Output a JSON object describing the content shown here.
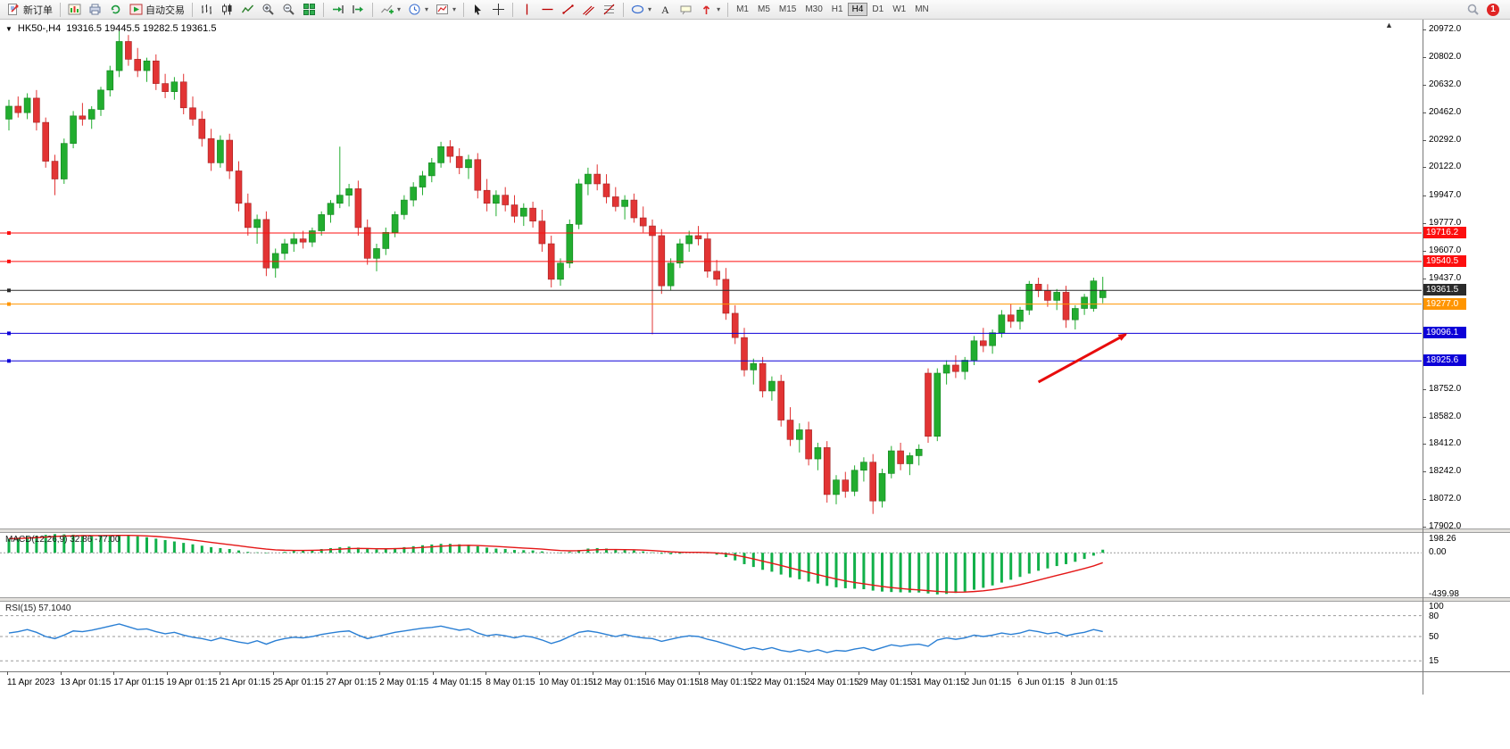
{
  "toolbar": {
    "new_order_label": "新订单",
    "autotrading_label": "自动交易",
    "timeframes": [
      "M1",
      "M5",
      "M15",
      "M30",
      "H1",
      "H4",
      "D1",
      "W1",
      "MN"
    ],
    "active_timeframe": "H4",
    "notification_count": "1"
  },
  "chart": {
    "header": {
      "symbol_period": "HK50-,H4",
      "ohlc": "19316.5 19445.5 19282.5 19361.5"
    }
  },
  "chart_data": {
    "type": "candlestick",
    "symbol": "HK50-",
    "period": "H4",
    "open": 19316.5,
    "high": 19445.5,
    "low": 19282.5,
    "close": 19361.5,
    "up_color": "#22ad2f",
    "down_color": "#e23434",
    "price_axis": {
      "view_max": 21035,
      "view_min": 17890,
      "ticks": [
        20972,
        20802,
        20632,
        20462,
        20292,
        20122,
        19947,
        19777,
        19607,
        19437,
        18752,
        18582,
        18412,
        18242,
        18072,
        17902
      ]
    },
    "hlines": [
      {
        "price": 19716.2,
        "label": "19716.2",
        "color": "#fd0f0f"
      },
      {
        "price": 19540.5,
        "label": "19540.5",
        "color": "#fd0f0f"
      },
      {
        "price": 19361.5,
        "label": "19361.5",
        "color": "#2b2b2b",
        "current": true
      },
      {
        "price": 19277.0,
        "label": "19277.0",
        "color": "#ff9500"
      },
      {
        "price": 19096.1,
        "label": "19096.1",
        "color": "#0d00d8"
      },
      {
        "price": 18925.6,
        "label": "18925.6",
        "color": "#0d00d8"
      }
    ],
    "candles": [
      [
        20420,
        20540,
        20350,
        20500
      ],
      [
        20500,
        20560,
        20430,
        20460
      ],
      [
        20460,
        20580,
        20420,
        20550
      ],
      [
        20550,
        20600,
        20350,
        20400
      ],
      [
        20400,
        20430,
        20120,
        20160
      ],
      [
        20160,
        20200,
        19950,
        20050
      ],
      [
        20050,
        20300,
        20020,
        20270
      ],
      [
        20270,
        20470,
        20240,
        20440
      ],
      [
        20440,
        20520,
        20380,
        20420
      ],
      [
        20420,
        20500,
        20360,
        20480
      ],
      [
        20480,
        20620,
        20440,
        20600
      ],
      [
        20600,
        20750,
        20560,
        20720
      ],
      [
        20720,
        20970,
        20680,
        20900
      ],
      [
        20900,
        20940,
        20750,
        20790
      ],
      [
        20790,
        20860,
        20680,
        20720
      ],
      [
        20720,
        20800,
        20650,
        20780
      ],
      [
        20780,
        20820,
        20600,
        20640
      ],
      [
        20640,
        20700,
        20550,
        20590
      ],
      [
        20590,
        20680,
        20540,
        20650
      ],
      [
        20650,
        20700,
        20450,
        20490
      ],
      [
        20490,
        20560,
        20380,
        20420
      ],
      [
        20420,
        20470,
        20250,
        20300
      ],
      [
        20300,
        20360,
        20100,
        20150
      ],
      [
        20150,
        20320,
        20120,
        20290
      ],
      [
        20290,
        20330,
        20050,
        20100
      ],
      [
        20100,
        20160,
        19850,
        19900
      ],
      [
        19900,
        19960,
        19700,
        19750
      ],
      [
        19750,
        19830,
        19650,
        19800
      ],
      [
        19800,
        19850,
        19450,
        19500
      ],
      [
        19500,
        19620,
        19440,
        19590
      ],
      [
        19590,
        19680,
        19550,
        19650
      ],
      [
        19650,
        19720,
        19600,
        19680
      ],
      [
        19680,
        19730,
        19620,
        19660
      ],
      [
        19660,
        19750,
        19630,
        19730
      ],
      [
        19730,
        19850,
        19700,
        19830
      ],
      [
        19830,
        19920,
        19780,
        19900
      ],
      [
        19900,
        20250,
        19870,
        19950
      ],
      [
        19950,
        20020,
        19880,
        19990
      ],
      [
        19990,
        20040,
        19700,
        19750
      ],
      [
        19750,
        19800,
        19520,
        19560
      ],
      [
        19560,
        19650,
        19480,
        19620
      ],
      [
        19620,
        19750,
        19580,
        19720
      ],
      [
        19720,
        19850,
        19690,
        19830
      ],
      [
        19830,
        19950,
        19800,
        19920
      ],
      [
        19920,
        20030,
        19880,
        20000
      ],
      [
        20000,
        20100,
        19950,
        20070
      ],
      [
        20070,
        20180,
        20030,
        20150
      ],
      [
        20150,
        20280,
        20120,
        20250
      ],
      [
        20250,
        20290,
        20150,
        20190
      ],
      [
        20190,
        20240,
        20080,
        20120
      ],
      [
        20120,
        20200,
        20050,
        20170
      ],
      [
        20170,
        20210,
        19930,
        19980
      ],
      [
        19980,
        20050,
        19850,
        19900
      ],
      [
        19900,
        19980,
        19820,
        19950
      ],
      [
        19950,
        20000,
        19850,
        19890
      ],
      [
        19890,
        19950,
        19780,
        19820
      ],
      [
        19820,
        19900,
        19760,
        19870
      ],
      [
        19870,
        19910,
        19750,
        19790
      ],
      [
        19790,
        19860,
        19600,
        19650
      ],
      [
        19650,
        19700,
        19380,
        19430
      ],
      [
        19430,
        19560,
        19390,
        19530
      ],
      [
        19530,
        19800,
        19500,
        19770
      ],
      [
        19770,
        20050,
        19740,
        20020
      ],
      [
        20020,
        20120,
        19950,
        20080
      ],
      [
        20080,
        20140,
        19980,
        20020
      ],
      [
        20020,
        20080,
        19900,
        19940
      ],
      [
        19940,
        20000,
        19850,
        19880
      ],
      [
        19880,
        19950,
        19800,
        19920
      ],
      [
        19920,
        19960,
        19780,
        19810
      ],
      [
        19810,
        19880,
        19720,
        19760
      ],
      [
        19760,
        19800,
        19090,
        19700
      ],
      [
        19700,
        19740,
        19340,
        19390
      ],
      [
        19390,
        19560,
        19360,
        19530
      ],
      [
        19530,
        19680,
        19500,
        19650
      ],
      [
        19650,
        19730,
        19600,
        19700
      ],
      [
        19700,
        19760,
        19640,
        19680
      ],
      [
        19680,
        19720,
        19440,
        19480
      ],
      [
        19480,
        19550,
        19390,
        19430
      ],
      [
        19430,
        19500,
        19180,
        19220
      ],
      [
        19220,
        19270,
        19030,
        19070
      ],
      [
        19070,
        19130,
        18830,
        18870
      ],
      [
        18870,
        18940,
        18780,
        18910
      ],
      [
        18910,
        18950,
        18700,
        18740
      ],
      [
        18740,
        18830,
        18680,
        18800
      ],
      [
        18800,
        18840,
        18520,
        18560
      ],
      [
        18560,
        18640,
        18400,
        18440
      ],
      [
        18440,
        18540,
        18360,
        18500
      ],
      [
        18500,
        18550,
        18280,
        18320
      ],
      [
        18320,
        18420,
        18250,
        18390
      ],
      [
        18390,
        18430,
        18050,
        18100
      ],
      [
        18100,
        18220,
        18040,
        18190
      ],
      [
        18190,
        18240,
        18080,
        18120
      ],
      [
        18120,
        18280,
        18090,
        18250
      ],
      [
        18250,
        18330,
        18180,
        18300
      ],
      [
        18300,
        18350,
        17980,
        18060
      ],
      [
        18060,
        18260,
        18020,
        18230
      ],
      [
        18230,
        18400,
        18200,
        18370
      ],
      [
        18370,
        18420,
        18250,
        18290
      ],
      [
        18290,
        18360,
        18220,
        18340
      ],
      [
        18340,
        18410,
        18280,
        18380
      ],
      [
        18850,
        18880,
        18420,
        18460
      ],
      [
        18460,
        18880,
        18430,
        18850
      ],
      [
        18850,
        18930,
        18780,
        18900
      ],
      [
        18900,
        18960,
        18820,
        18860
      ],
      [
        18860,
        18950,
        18810,
        18930
      ],
      [
        18930,
        19080,
        18900,
        19050
      ],
      [
        19050,
        19130,
        18980,
        19020
      ],
      [
        19020,
        19120,
        18970,
        19100
      ],
      [
        19100,
        19240,
        19070,
        19210
      ],
      [
        19210,
        19280,
        19130,
        19170
      ],
      [
        19170,
        19260,
        19120,
        19240
      ],
      [
        19240,
        19420,
        19210,
        19400
      ],
      [
        19400,
        19440,
        19320,
        19360
      ],
      [
        19360,
        19400,
        19260,
        19300
      ],
      [
        19300,
        19370,
        19240,
        19350
      ],
      [
        19350,
        19390,
        19130,
        19180
      ],
      [
        19180,
        19270,
        19120,
        19250
      ],
      [
        19250,
        19340,
        19210,
        19320
      ],
      [
        19250,
        19440,
        19230,
        19420
      ],
      [
        19316.5,
        19445.5,
        19282.5,
        19361.5
      ]
    ],
    "x_axis_labels": [
      "11 Apr 2023",
      "13 Apr 01:15",
      "17 Apr 01:15",
      "19 Apr 01:15",
      "21 Apr 01:15",
      "25 Apr 01:15",
      "27 Apr 01:15",
      "2 May 01:15",
      "4 May 01:15",
      "8 May 01:15",
      "10 May 01:15",
      "12 May 01:15",
      "16 May 01:15",
      "18 May 01:15",
      "22 May 01:15",
      "24 May 01:15",
      "29 May 01:15",
      "31 May 01:15",
      "2 Jun 01:15",
      "6 Jun 01:15",
      "8 Jun 01:15"
    ],
    "indicators": [
      {
        "name": "MACD",
        "label": "MACD(12,26,9) 32.86 -77.00",
        "axis_labels": [
          "198.26",
          "0.00",
          "-439.98"
        ],
        "axis_values": [
          198.26,
          0,
          -439.98
        ],
        "range_min": -470,
        "range_max": 210,
        "bar_color": "#12b04a",
        "signal_color": "#e41616",
        "histogram": [
          150,
          160,
          170,
          180,
          190,
          198,
          195,
          192,
          188,
          185,
          183,
          186,
          190,
          185,
          175,
          165,
          150,
          135,
          120,
          105,
          90,
          75,
          60,
          50,
          40,
          25,
          10,
          5,
          -5,
          0,
          10,
          20,
          25,
          30,
          40,
          50,
          60,
          65,
          55,
          40,
          35,
          40,
          50,
          60,
          70,
          80,
          88,
          95,
          95,
          90,
          85,
          70,
          55,
          45,
          40,
          30,
          28,
          25,
          15,
          0,
          -5,
          10,
          30,
          45,
          50,
          45,
          35,
          30,
          25,
          15,
          5,
          -10,
          -15,
          -10,
          0,
          5,
          -5,
          -20,
          -45,
          -80,
          -120,
          -150,
          -180,
          -200,
          -230,
          -260,
          -280,
          -305,
          -325,
          -350,
          -365,
          -375,
          -380,
          -385,
          -400,
          -410,
          -415,
          -418,
          -420,
          -420,
          -430,
          -440,
          -435,
          -425,
          -410,
          -390,
          -370,
          -345,
          -315,
          -285,
          -255,
          -220,
          -190,
          -165,
          -140,
          -120,
          -95,
          -65,
          -30,
          33
        ]
      },
      {
        "name": "RSI",
        "label": "RSI(15) 57.1040",
        "axis_labels": [
          "100",
          "80",
          "50",
          "15"
        ],
        "axis_values": [
          100,
          80,
          50,
          15
        ],
        "levels": [
          80,
          50,
          15
        ],
        "line_color": "#2a7fd4",
        "values": [
          55,
          57,
          60,
          56,
          50,
          47,
          52,
          58,
          57,
          59,
          62,
          65,
          68,
          64,
          60,
          61,
          57,
          54,
          56,
          52,
          49,
          47,
          44,
          48,
          45,
          42,
          40,
          44,
          39,
          44,
          47,
          49,
          48,
          50,
          53,
          55,
          57,
          58,
          52,
          47,
          50,
          53,
          56,
          58,
          60,
          62,
          63,
          65,
          62,
          59,
          61,
          55,
          51,
          53,
          51,
          48,
          51,
          49,
          45,
          40,
          44,
          50,
          56,
          58,
          56,
          53,
          50,
          53,
          50,
          48,
          47,
          43,
          46,
          49,
          51,
          50,
          46,
          43,
          39,
          35,
          31,
          34,
          31,
          34,
          30,
          28,
          31,
          28,
          31,
          27,
          30,
          29,
          32,
          34,
          30,
          34,
          38,
          36,
          38,
          39,
          36,
          45,
          48,
          46,
          48,
          52,
          50,
          52,
          55,
          53,
          55,
          59,
          57,
          54,
          56,
          51,
          54,
          56,
          60,
          57.1
        ]
      }
    ],
    "arrow_annotation": {
      "color": "#e80c0c",
      "from": {
        "index": 112,
        "price": 18795
      },
      "to": {
        "index": 121.5,
        "price": 19090
      }
    }
  }
}
